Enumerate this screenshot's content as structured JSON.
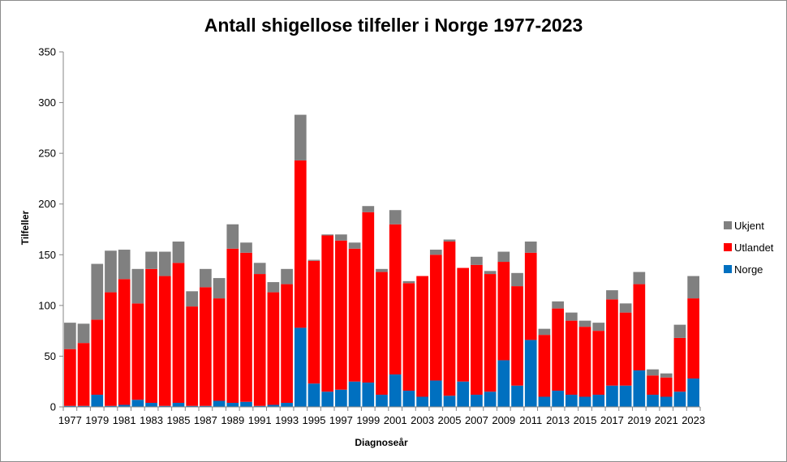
{
  "chart_data": {
    "type": "bar",
    "stacked": true,
    "title": "Antall shigellose tilfeller i Norge 1977-2023",
    "xlabel": "Diagnoseår",
    "ylabel": "Tilfeller",
    "ylim": [
      0,
      350
    ],
    "yticks": [
      0,
      50,
      100,
      150,
      200,
      250,
      300,
      350
    ],
    "grid": false,
    "legend_position": "right",
    "categories": [
      "1977",
      "1978",
      "1979",
      "1980",
      "1981",
      "1982",
      "1983",
      "1984",
      "1985",
      "1986",
      "1987",
      "1988",
      "1989",
      "1990",
      "1991",
      "1992",
      "1993",
      "1994",
      "1995",
      "1996",
      "1997",
      "1998",
      "1999",
      "2000",
      "2001",
      "2002",
      "2003",
      "2004",
      "2005",
      "2006",
      "2007",
      "2008",
      "2009",
      "2010",
      "2011",
      "2012",
      "2013",
      "2014",
      "2015",
      "2016",
      "2017",
      "2018",
      "2019",
      "2020",
      "2021",
      "2022",
      "2023"
    ],
    "tick_labels": [
      "1977",
      "",
      "1979",
      "",
      "1981",
      "",
      "1983",
      "",
      "1985",
      "",
      "1987",
      "",
      "1989",
      "",
      "1991",
      "",
      "1993",
      "",
      "1995",
      "",
      "1997",
      "",
      "1999",
      "",
      "2001",
      "",
      "2003",
      "",
      "2005",
      "",
      "2007",
      "",
      "2009",
      "",
      "2011",
      "",
      "2013",
      "",
      "2015",
      "",
      "2017",
      "",
      "2019",
      "",
      "2021",
      "",
      "2023"
    ],
    "series": [
      {
        "name": "Norge",
        "color": "#0070C0",
        "values": [
          1,
          1,
          12,
          1,
          2,
          7,
          4,
          1,
          4,
          1,
          1,
          6,
          4,
          5,
          1,
          2,
          4,
          78,
          23,
          15,
          17,
          25,
          24,
          12,
          32,
          16,
          10,
          26,
          11,
          25,
          12,
          15,
          46,
          21,
          66,
          10,
          16,
          12,
          10,
          12,
          21,
          21,
          36,
          12,
          10,
          15,
          28
        ]
      },
      {
        "name": "Utlandet",
        "color": "#FF0000",
        "values": [
          56,
          62,
          74,
          112,
          124,
          95,
          132,
          128,
          138,
          98,
          117,
          101,
          152,
          147,
          130,
          111,
          117,
          165,
          121,
          154,
          147,
          131,
          168,
          121,
          148,
          106,
          119,
          124,
          152,
          112,
          128,
          116,
          97,
          98,
          86,
          61,
          81,
          73,
          69,
          63,
          85,
          72,
          85,
          19,
          19,
          53,
          79
        ]
      },
      {
        "name": "Ukjent",
        "color": "#808080",
        "values": [
          26,
          19,
          55,
          41,
          29,
          34,
          17,
          24,
          21,
          15,
          18,
          20,
          24,
          10,
          11,
          10,
          15,
          45,
          1,
          1,
          6,
          6,
          6,
          3,
          14,
          2,
          0,
          5,
          2,
          0,
          8,
          3,
          10,
          13,
          11,
          6,
          7,
          8,
          6,
          8,
          9,
          9,
          12,
          6,
          4,
          13,
          22
        ]
      }
    ]
  }
}
